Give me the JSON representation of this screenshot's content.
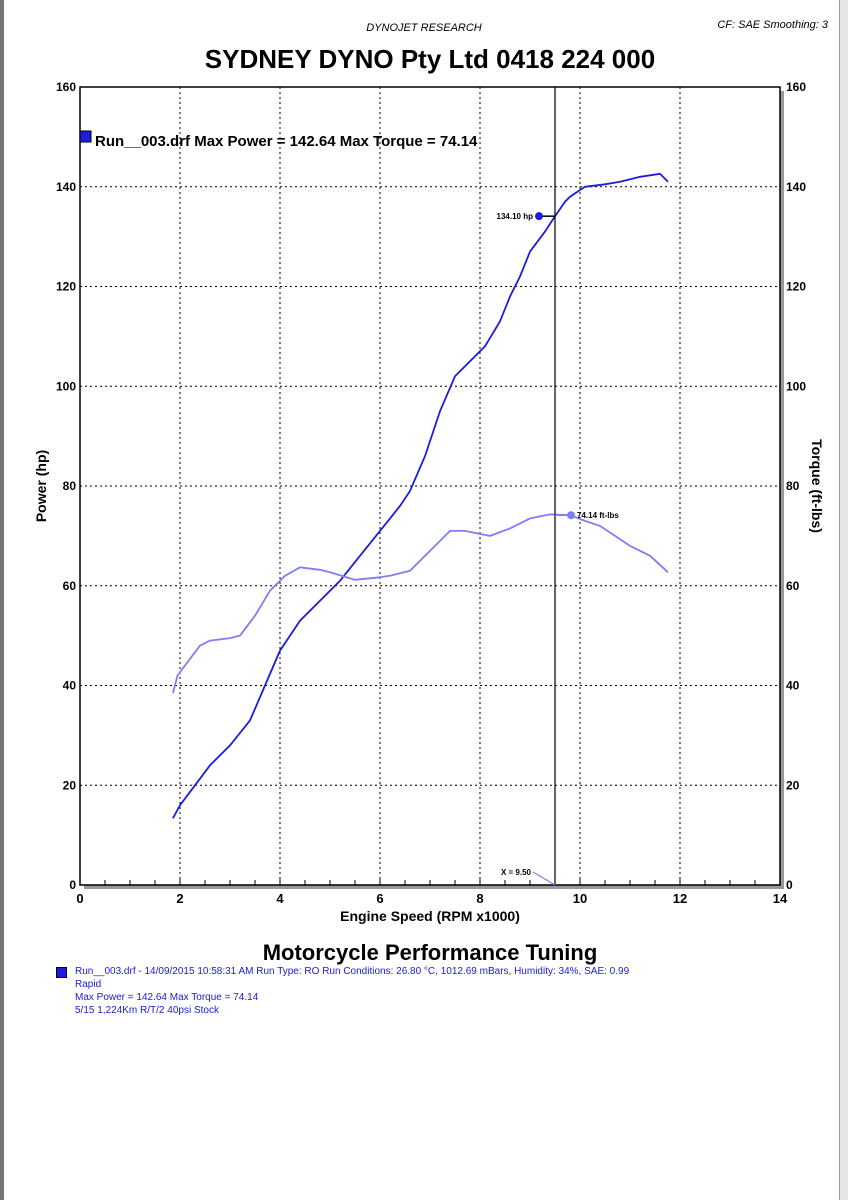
{
  "header": {
    "subtitle": "DYNOJET RESEARCH",
    "settings": "CF: SAE  Smoothing: 3",
    "title": "SYDNEY DYNO Pty Ltd  0418 224 000"
  },
  "footer": {
    "title": "Motorcycle Performance Tuning",
    "run_line": "Run__003.drf - 14/09/2015 10:58:31 AM  Run Type: RO  Run Conditions: 26.80 °C, 1012.69 mBars,  Humidity:  34%, SAE: 0.99",
    "mode": "Rapid",
    "max_line": "Max Power = 142.64  Max Torque = 74.14",
    "notes": "5/15 1,224Km R/T/2 40psi Stock"
  },
  "chart_data": {
    "type": "line",
    "legend": "Run__003.drf Max Power = 142.64     Max Torque = 74.14",
    "legend_placement": "top-left",
    "xlabel": "Engine Speed (RPM x1000)",
    "ylabel": "Power (hp)",
    "y2label": "Torque (ft-lbs)",
    "xlim": [
      0,
      14
    ],
    "ylim": [
      0,
      160
    ],
    "y2lim": [
      0,
      160
    ],
    "xticks": [
      "0",
      "2",
      "4",
      "6",
      "8",
      "10",
      "12",
      "14"
    ],
    "yticks": [
      "0",
      "20",
      "40",
      "60",
      "80",
      "100",
      "120",
      "140",
      "160"
    ],
    "grid": true,
    "cursor": {
      "x": 9.5,
      "label": "X = 9.50",
      "power_label": "134.10 hp",
      "power_value": 134.1,
      "torque_label": "74.14 ft-lbs",
      "torque_value": 74.14
    },
    "series": [
      {
        "name": "Power",
        "color": "#1c1ce0",
        "x": [
          1.86,
          2.0,
          2.3,
          2.6,
          3.0,
          3.4,
          3.7,
          4.0,
          4.4,
          4.8,
          5.2,
          5.6,
          6.0,
          6.4,
          6.6,
          6.9,
          7.2,
          7.5,
          7.8,
          8.1,
          8.4,
          8.6,
          8.8,
          9.0,
          9.3,
          9.5,
          9.7,
          9.8,
          10.1,
          10.5,
          10.8,
          11.2,
          11.6,
          11.76
        ],
        "y": [
          13.4,
          16,
          20,
          24,
          28,
          33,
          40,
          47,
          53,
          57,
          61,
          66,
          71,
          76,
          79,
          86,
          95,
          102,
          105,
          108,
          113,
          118,
          122,
          127,
          131,
          134.1,
          137,
          138,
          140,
          140.5,
          141,
          142,
          142.6,
          141
        ]
      },
      {
        "name": "Torque",
        "color": "#7f7ff2",
        "x": [
          1.86,
          1.95,
          2.1,
          2.4,
          2.6,
          3.0,
          3.2,
          3.5,
          3.8,
          4.1,
          4.4,
          4.8,
          5.0,
          5.5,
          5.9,
          6.2,
          6.6,
          6.8,
          7.1,
          7.4,
          7.7,
          8.2,
          8.6,
          9.0,
          9.4,
          9.8,
          10.1,
          10.4,
          10.7,
          11.0,
          11.4,
          11.76
        ],
        "y": [
          38.5,
          42,
          44,
          48,
          49,
          49.5,
          50,
          54,
          59,
          62,
          63.7,
          63.2,
          62.7,
          61.2,
          61.6,
          62,
          63,
          65,
          68,
          71,
          71,
          70,
          71.5,
          73.5,
          74.3,
          74.14,
          73,
          72,
          70,
          68,
          66,
          62.7
        ]
      }
    ]
  }
}
